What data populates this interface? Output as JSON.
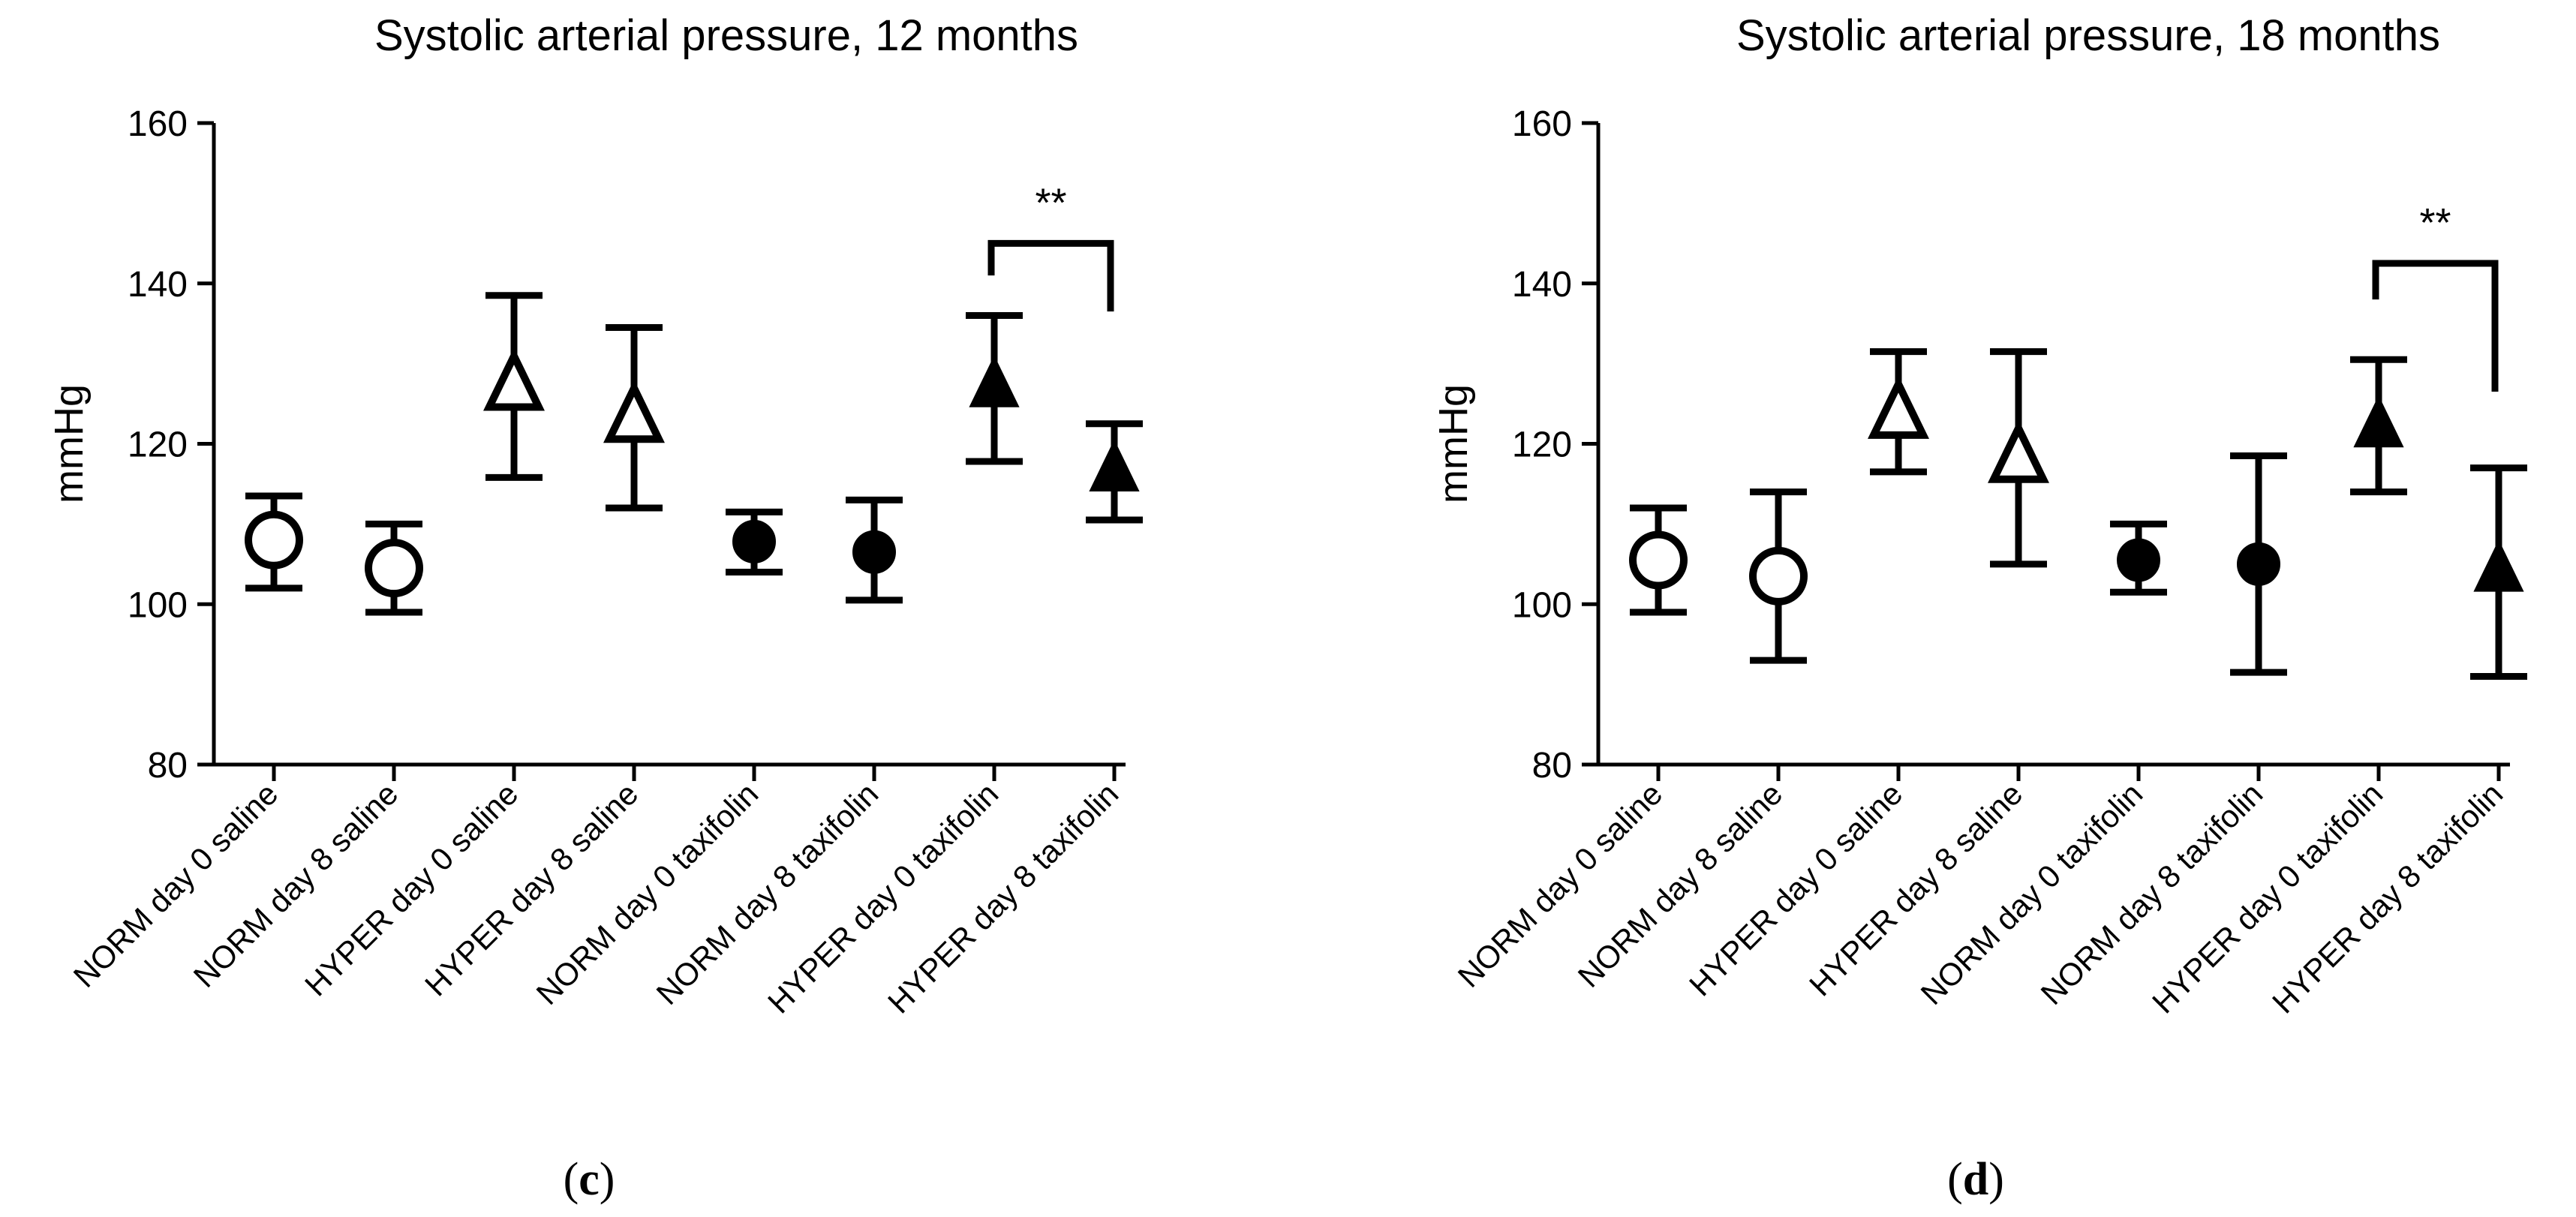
{
  "chart_data": [
    {
      "type": "scatter",
      "title": "Systolic arterial pressure, 12 months",
      "ylabel": "mmHg",
      "ylim": [
        80,
        160
      ],
      "yticks": [
        80,
        100,
        120,
        140,
        160
      ],
      "panel_label": {
        "open": "(",
        "letter": "c",
        "close": ")"
      },
      "categories": [
        "NORM  day 0 saline",
        "NORM  day 8 saline",
        "HYPER  day 0 saline",
        "HYPER  day 8 saline",
        "NORM day 0 taxifolin",
        "NORM day 8 taxifolin",
        "HYPER day 0 taxifolin",
        "HYPER day 8 taxifolin"
      ],
      "markers": [
        "circle-open",
        "circle-open",
        "triangle-open",
        "triangle-open",
        "circle-filled",
        "circle-filled",
        "triangle-filled",
        "triangle-filled"
      ],
      "values": [
        108,
        104.5,
        127,
        123,
        107.8,
        106.5,
        127,
        116.5
      ],
      "err_low": [
        102,
        99,
        115.8,
        112,
        104,
        100.5,
        117.8,
        110.5
      ],
      "err_high": [
        113.5,
        110,
        138.5,
        134.5,
        111.5,
        113,
        136,
        122.5
      ],
      "significance": {
        "from": 6,
        "to": 7,
        "label": "**",
        "bracket_y": 145,
        "left_drop_to": 141,
        "right_drop_to": 136.5
      }
    },
    {
      "type": "scatter",
      "title": "Systolic arterial pressure, 18 months",
      "ylabel": "mmHg",
      "ylim": [
        80,
        160
      ],
      "yticks": [
        80,
        100,
        120,
        140,
        160
      ],
      "panel_label": {
        "open": "(",
        "letter": "d",
        "close": ")"
      },
      "categories": [
        "NORM  day 0 saline",
        "NORM  day 8 saline",
        "HYPER  day 0 saline",
        "HYPER  day 8 saline",
        "NORM day 0 taxifolin",
        "NORM day 8 taxifolin",
        "HYPER day 0 taxifolin",
        "HYPER day 8 taxifolin"
      ],
      "markers": [
        "circle-open",
        "circle-open",
        "triangle-open",
        "triangle-open",
        "circle-filled",
        "circle-filled",
        "triangle-filled",
        "triangle-filled"
      ],
      "values": [
        105.5,
        103.5,
        123.5,
        118,
        105.5,
        105,
        122,
        104
      ],
      "err_low": [
        99,
        93,
        116.5,
        105,
        101.5,
        91.5,
        114,
        91
      ],
      "err_high": [
        112,
        114,
        131.5,
        131.5,
        110,
        118.5,
        130.5,
        117
      ],
      "significance": {
        "from": 6,
        "to": 7,
        "label": "**",
        "bracket_y": 142.5,
        "left_drop_to": 138,
        "right_drop_to": 126.5
      }
    }
  ]
}
